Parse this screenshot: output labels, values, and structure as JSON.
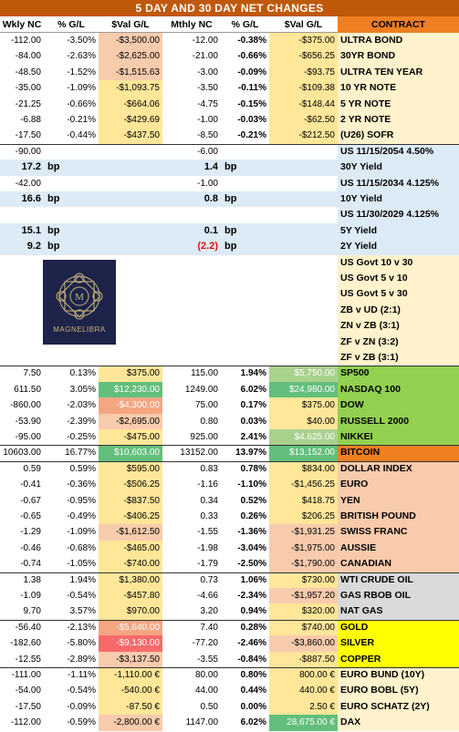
{
  "title": "5 DAY AND 30 DAY NET CHANGES",
  "headers": [
    "Wkly NC",
    "% G/L",
    "$Val G/L",
    "Mthly NC",
    "% G/L",
    "$Val G/L",
    "CONTRACT"
  ],
  "logo": {
    "text": "MAGNELIBRA",
    "monogram": "M"
  },
  "colors": {
    "light_yellow": "#fff2cc",
    "light_blue": "#ddebf7",
    "green": "#92d050",
    "light_orange": "#f8cbad",
    "bitcoin_orange": "#ee7f22",
    "light_gray": "#d9d9d9",
    "yellow": "#ffff00",
    "soft_orange": "#f4b183",
    "header_orange": "#c0580a"
  },
  "rows": [
    {
      "w_nc": "-112.00",
      "w_pct": "-3.50%",
      "w_val": "-$3,500.00",
      "m_nc": "-12.00",
      "m_pct": "-0.38%",
      "m_val": "-$375.00",
      "contract": "ULTRA BOND",
      "group": "rates"
    },
    {
      "w_nc": "-84.00",
      "w_pct": "-2.63%",
      "w_val": "-$2,625.00",
      "m_nc": "-21.00",
      "m_pct": "-0.66%",
      "m_val": "-$656.25",
      "contract": "30YR BOND",
      "group": "rates"
    },
    {
      "w_nc": "-48.50",
      "w_pct": "-1.52%",
      "w_val": "-$1,515.63",
      "m_nc": "-3.00",
      "m_pct": "-0.09%",
      "m_val": "-$93.75",
      "contract": "ULTRA TEN YEAR",
      "group": "rates"
    },
    {
      "w_nc": "-35.00",
      "w_pct": "-1.09%",
      "w_val": "-$1,093.75",
      "m_nc": "-3.50",
      "m_pct": "-0.11%",
      "m_val": "-$109.38",
      "contract": "10 YR NOTE",
      "group": "rates"
    },
    {
      "w_nc": "-21.25",
      "w_pct": "-0.66%",
      "w_val": "-$664.06",
      "m_nc": "-4.75",
      "m_pct": "-0.15%",
      "m_val": "-$148.44",
      "contract": "5 YR NOTE",
      "group": "rates"
    },
    {
      "w_nc": "-6.88",
      "w_pct": "-0.21%",
      "w_val": "-$429.69",
      "m_nc": "-1.00",
      "m_pct": "-0.03%",
      "m_val": "-$62.50",
      "contract": "2 YR NOTE",
      "group": "rates"
    },
    {
      "w_nc": "-17.50",
      "w_pct": "-0.44%",
      "w_val": "-$437.50",
      "m_nc": "-8.50",
      "m_pct": "-0.21%",
      "m_val": "-$212.50",
      "contract": "(U26) SOFR",
      "group": "rates"
    },
    {
      "w_nc": "-90.00",
      "w_pct": "",
      "w_val": "",
      "m_nc": "-6.00",
      "m_pct": "",
      "m_val": "",
      "contract": "US 11/15/2054 4.50%",
      "group": "cash"
    },
    {
      "w_nc": "17.2",
      "w_pct": "bp",
      "w_val": "",
      "m_nc": "1.4",
      "m_pct": "bp",
      "m_val": "",
      "contract": "30Y Yield",
      "group": "yield"
    },
    {
      "w_nc": "-42.00",
      "w_pct": "",
      "w_val": "",
      "m_nc": "-1.00",
      "m_pct": "",
      "m_val": "",
      "contract": "US 11/15/2034 4.125%",
      "group": "cash"
    },
    {
      "w_nc": "16.6",
      "w_pct": "bp",
      "w_val": "",
      "m_nc": "0.8",
      "m_pct": "bp",
      "m_val": "",
      "contract": "10Y Yield",
      "group": "yield"
    },
    {
      "w_nc": "",
      "w_pct": "",
      "w_val": "",
      "m_nc": "",
      "m_pct": "",
      "m_val": "",
      "contract": "US 11/30/2029 4.125%",
      "group": "cash"
    },
    {
      "w_nc": "15.1",
      "w_pct": "bp",
      "w_val": "",
      "m_nc": "0.1",
      "m_pct": "bp",
      "m_val": "",
      "contract": "5Y Yield",
      "group": "yield"
    },
    {
      "w_nc": "9.2",
      "w_pct": "bp",
      "w_val": "",
      "m_nc": "(2.2)",
      "m_pct": "bp",
      "m_val": "",
      "contract": "2Y Yield",
      "group": "yield"
    },
    {
      "w_nc": "",
      "w_pct": "",
      "w_val": "",
      "m_nc": "",
      "m_pct": "",
      "m_val": "",
      "contract": "US Govt 10 v 30",
      "group": "spread"
    },
    {
      "w_nc": "",
      "w_pct": "",
      "w_val": "",
      "m_nc": "",
      "m_pct": "",
      "m_val": "",
      "contract": "US Govt 5 v 10",
      "group": "spread"
    },
    {
      "w_nc": "",
      "w_pct": "",
      "w_val": "",
      "m_nc": "",
      "m_pct": "",
      "m_val": "",
      "contract": "US Govt 5 v 30",
      "group": "spread"
    },
    {
      "w_nc": "",
      "w_pct": "",
      "w_val": "",
      "m_nc": "",
      "m_pct": "",
      "m_val": "",
      "contract": "ZB v UD (2:1)",
      "group": "spread"
    },
    {
      "w_nc": "",
      "w_pct": "",
      "w_val": "",
      "m_nc": "",
      "m_pct": "",
      "m_val": "",
      "contract": "ZN v ZB (3:1)",
      "group": "spread"
    },
    {
      "w_nc": "",
      "w_pct": "",
      "w_val": "",
      "m_nc": "",
      "m_pct": "",
      "m_val": "",
      "contract": "ZF v ZN (3:2)",
      "group": "spread"
    },
    {
      "w_nc": "",
      "w_pct": "",
      "w_val": "",
      "m_nc": "",
      "m_pct": "",
      "m_val": "",
      "contract": "ZF v ZB (3:1)",
      "group": "spread"
    },
    {
      "w_nc": "7.50",
      "w_pct": "0.13%",
      "w_val": "$375.00",
      "m_nc": "115.00",
      "m_pct": "1.94%",
      "m_val": "$5,750.00",
      "contract": "SP500",
      "group": "equity"
    },
    {
      "w_nc": "611.50",
      "w_pct": "3.05%",
      "w_val": "$12,230.00",
      "m_nc": "1249.00",
      "m_pct": "6.02%",
      "m_val": "$24,980.00",
      "contract": "NASDAQ 100",
      "group": "equity"
    },
    {
      "w_nc": "-860.00",
      "w_pct": "-2.03%",
      "w_val": "-$4,300.00",
      "m_nc": "75.00",
      "m_pct": "0.17%",
      "m_val": "$375.00",
      "contract": "DOW",
      "group": "equity"
    },
    {
      "w_nc": "-53.90",
      "w_pct": "-2.39%",
      "w_val": "-$2,695.00",
      "m_nc": "0.80",
      "m_pct": "0.03%",
      "m_val": "$40.00",
      "contract": "RUSSELL 2000",
      "group": "equity"
    },
    {
      "w_nc": "-95.00",
      "w_pct": "-0.25%",
      "w_val": "-$475.00",
      "m_nc": "925.00",
      "m_pct": "2.41%",
      "m_val": "$4,625.00",
      "contract": "NIKKEI",
      "group": "equity"
    },
    {
      "w_nc": "10603.00",
      "w_pct": "16.77%",
      "w_val": "$10,603.00",
      "m_nc": "13152.00",
      "m_pct": "13.97%",
      "m_val": "$13,152.00",
      "contract": "BITCOIN",
      "group": "crypto"
    },
    {
      "w_nc": "0.59",
      "w_pct": "0.59%",
      "w_val": "$595.00",
      "m_nc": "0.83",
      "m_pct": "0.78%",
      "m_val": "$834.00",
      "contract": "DOLLAR INDEX",
      "group": "fx"
    },
    {
      "w_nc": "-0.41",
      "w_pct": "-0.36%",
      "w_val": "-$506.25",
      "m_nc": "-1.16",
      "m_pct": "-1.10%",
      "m_val": "-$1,456.25",
      "contract": "EURO",
      "group": "fx"
    },
    {
      "w_nc": "-0.67",
      "w_pct": "-0.95%",
      "w_val": "-$837.50",
      "m_nc": "0.34",
      "m_pct": "0.52%",
      "m_val": "$418.75",
      "contract": "YEN",
      "group": "fx"
    },
    {
      "w_nc": "-0.65",
      "w_pct": "-0.49%",
      "w_val": "-$406.25",
      "m_nc": "0.33",
      "m_pct": "0.26%",
      "m_val": "$206.25",
      "contract": "BRITISH POUND",
      "group": "fx"
    },
    {
      "w_nc": "-1.29",
      "w_pct": "-1.09%",
      "w_val": "-$1,612.50",
      "m_nc": "-1.55",
      "m_pct": "-1.36%",
      "m_val": "-$1,931.25",
      "contract": "SWISS FRANC",
      "group": "fx"
    },
    {
      "w_nc": "-0.46",
      "w_pct": "-0.68%",
      "w_val": "-$465.00",
      "m_nc": "-1.98",
      "m_pct": "-3.04%",
      "m_val": "-$1,975.00",
      "contract": "AUSSIE",
      "group": "fx"
    },
    {
      "w_nc": "-0.74",
      "w_pct": "-1.05%",
      "w_val": "-$740.00",
      "m_nc": "-1.79",
      "m_pct": "-2.50%",
      "m_val": "-$1,790.00",
      "contract": "CANADIAN",
      "group": "fx"
    },
    {
      "w_nc": "1.38",
      "w_pct": "1.94%",
      "w_val": "$1,380.00",
      "m_nc": "0.73",
      "m_pct": "1.06%",
      "m_val": "$730.00",
      "contract": "WTI CRUDE OIL",
      "group": "energy"
    },
    {
      "w_nc": "-1.09",
      "w_pct": "-0.54%",
      "w_val": "-$457.80",
      "m_nc": "-4.66",
      "m_pct": "-2.34%",
      "m_val": "-$1,957.20",
      "contract": "GAS RBOB OIL",
      "group": "energy"
    },
    {
      "w_nc": "9.70",
      "w_pct": "3.57%",
      "w_val": "$970.00",
      "m_nc": "3.20",
      "m_pct": "0.94%",
      "m_val": "$320.00",
      "contract": "NAT GAS",
      "group": "energy"
    },
    {
      "w_nc": "-56.40",
      "w_pct": "-2.13%",
      "w_val": "-$5,640.00",
      "m_nc": "7.40",
      "m_pct": "0.28%",
      "m_val": "$740.00",
      "contract": "GOLD",
      "group": "metal"
    },
    {
      "w_nc": "-182.60",
      "w_pct": "-5.80%",
      "w_val": "-$9,130.00",
      "m_nc": "-77.20",
      "m_pct": "-2.46%",
      "m_val": "-$3,860.00",
      "contract": "SILVER",
      "group": "metal"
    },
    {
      "w_nc": "-12.55",
      "w_pct": "-2.89%",
      "w_val": "-$3,137.50",
      "m_nc": "-3.55",
      "m_pct": "-0.84%",
      "m_val": "-$887.50",
      "contract": "COPPER",
      "group": "metal"
    },
    {
      "w_nc": "-111.00",
      "w_pct": "-1.11%",
      "w_val": "-1,110.00 €",
      "m_nc": "80.00",
      "m_pct": "0.80%",
      "m_val": "800.00 €",
      "contract": "EURO BUND (10Y)",
      "group": "euro"
    },
    {
      "w_nc": "-54.00",
      "w_pct": "-0.54%",
      "w_val": "-540.00 €",
      "m_nc": "44.00",
      "m_pct": "0.44%",
      "m_val": "440.00 €",
      "contract": "EURO BOBL (5Y)",
      "group": "euro"
    },
    {
      "w_nc": "-17.50",
      "w_pct": "-0.09%",
      "w_val": "-87.50 €",
      "m_nc": "0.50",
      "m_pct": "0.00%",
      "m_val": "2.50 €",
      "contract": "EURO SCHATZ (2Y)",
      "group": "euro"
    },
    {
      "w_nc": "-112.00",
      "w_pct": "-0.59%",
      "w_val": "-2,800.00 €",
      "m_nc": "1147.00",
      "m_pct": "6.02%",
      "m_val": "28,675.00 €",
      "contract": "DAX",
      "group": "euro"
    }
  ]
}
